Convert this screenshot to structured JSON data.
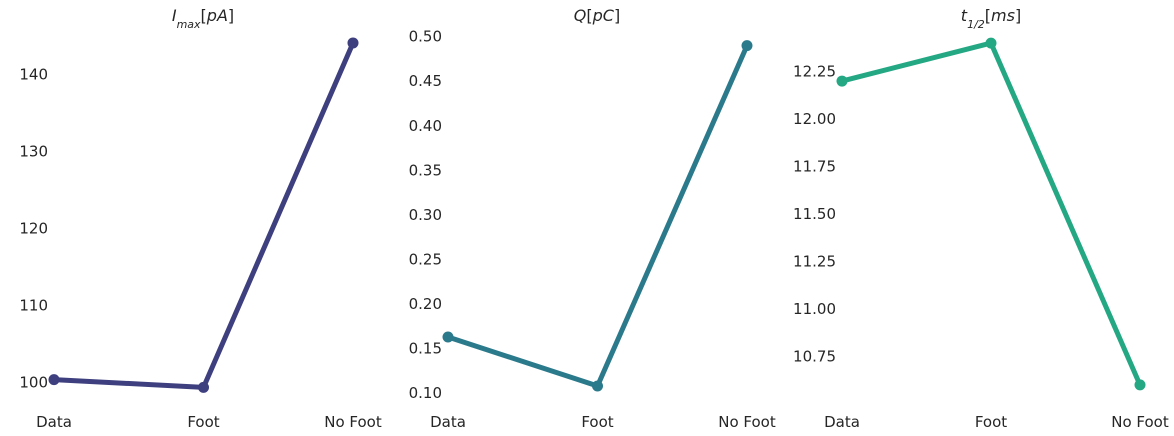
{
  "colors": {
    "series": [
      "#3e3f7e",
      "#2b7a8c",
      "#24a884"
    ],
    "text": "#262626",
    "background": "#ffffff"
  },
  "chart_data": [
    {
      "type": "line",
      "title": "I_{max}[pA]",
      "title_parts": [
        "I",
        "max",
        "[",
        "pA",
        "]"
      ],
      "categories": [
        "Data",
        "Foot",
        "No Foot"
      ],
      "values": [
        100.4,
        99.4,
        144.1
      ],
      "ylim": [
        97.5,
        146.3
      ],
      "yticks": [
        100,
        110,
        120,
        130,
        140
      ],
      "ytick_labels": [
        "100",
        "110",
        "120",
        "130",
        "140"
      ],
      "grid": false,
      "legend": "none"
    },
    {
      "type": "line",
      "title": "Q[pC]",
      "title_parts": [
        "Q",
        "",
        "[",
        "pC",
        "]"
      ],
      "categories": [
        "Data",
        "Foot",
        "No Foot"
      ],
      "values": [
        0.163,
        0.108,
        0.49
      ],
      "ylim": [
        0.09,
        0.512
      ],
      "yticks": [
        0.1,
        0.15,
        0.2,
        0.25,
        0.3,
        0.35,
        0.4,
        0.45,
        0.5
      ],
      "ytick_labels": [
        "0.10",
        "0.15",
        "0.20",
        "0.25",
        "0.30",
        "0.35",
        "0.40",
        "0.45",
        "0.50"
      ],
      "grid": false,
      "legend": "none"
    },
    {
      "type": "line",
      "title": "t_{1/2}[ms]",
      "title_parts": [
        "t",
        "1/2",
        "[",
        "ms",
        "]"
      ],
      "categories": [
        "Data",
        "Foot",
        "No Foot"
      ],
      "values": [
        12.2,
        12.4,
        10.6
      ],
      "ylim": [
        10.51,
        12.49
      ],
      "yticks": [
        10.75,
        11.0,
        11.25,
        11.5,
        11.75,
        12.0,
        12.25
      ],
      "ytick_labels": [
        "10.75",
        "11.00",
        "11.25",
        "11.50",
        "11.75",
        "12.00",
        "12.25"
      ],
      "grid": false,
      "legend": "none"
    }
  ]
}
